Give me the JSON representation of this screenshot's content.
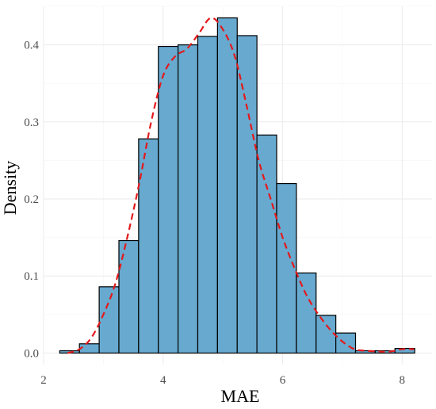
{
  "chart_data": {
    "type": "bar",
    "title": "",
    "xlabel": "MAE",
    "ylabel": "Density",
    "xlim": [
      2.0,
      8.5
    ],
    "ylim": [
      -0.015,
      0.45
    ],
    "xticks": [
      2,
      4,
      6,
      8
    ],
    "yticks": [
      0.0,
      0.1,
      0.2,
      0.3,
      0.4
    ],
    "ytick_labels": [
      "0.0",
      "0.1",
      "0.2",
      "0.3",
      "0.4"
    ],
    "xtick_labels": [
      "2",
      "4",
      "6",
      "8"
    ],
    "grid": true,
    "bin_edges": [
      2.27,
      2.6,
      2.93,
      3.26,
      3.59,
      3.92,
      4.25,
      4.58,
      4.91,
      5.24,
      5.57,
      5.9,
      6.23,
      6.56,
      6.89,
      7.22,
      7.55,
      7.88,
      8.21
    ],
    "values": [
      0.003,
      0.012,
      0.086,
      0.146,
      0.278,
      0.398,
      0.4,
      0.411,
      0.435,
      0.412,
      0.283,
      0.22,
      0.104,
      0.049,
      0.026,
      0.003,
      0.003,
      0.006
    ],
    "bar_fill": "#67a9cf",
    "bar_stroke": "#000000",
    "density_color": "#e31a1c",
    "density_curve": {
      "x": [
        2.4,
        2.6,
        2.8,
        3.0,
        3.2,
        3.4,
        3.6,
        3.8,
        4.0,
        4.2,
        4.4,
        4.6,
        4.8,
        5.0,
        5.2,
        5.4,
        5.6,
        5.8,
        6.0,
        6.2,
        6.4,
        6.6,
        6.8,
        7.0,
        7.2,
        7.4,
        7.6,
        7.8,
        8.0,
        8.2
      ],
      "y": [
        0.0,
        0.005,
        0.02,
        0.05,
        0.09,
        0.15,
        0.22,
        0.3,
        0.36,
        0.385,
        0.395,
        0.415,
        0.435,
        0.42,
        0.385,
        0.32,
        0.25,
        0.2,
        0.15,
        0.11,
        0.075,
        0.05,
        0.03,
        0.015,
        0.005,
        0.003,
        0.002,
        0.002,
        0.005,
        0.005
      ]
    }
  }
}
